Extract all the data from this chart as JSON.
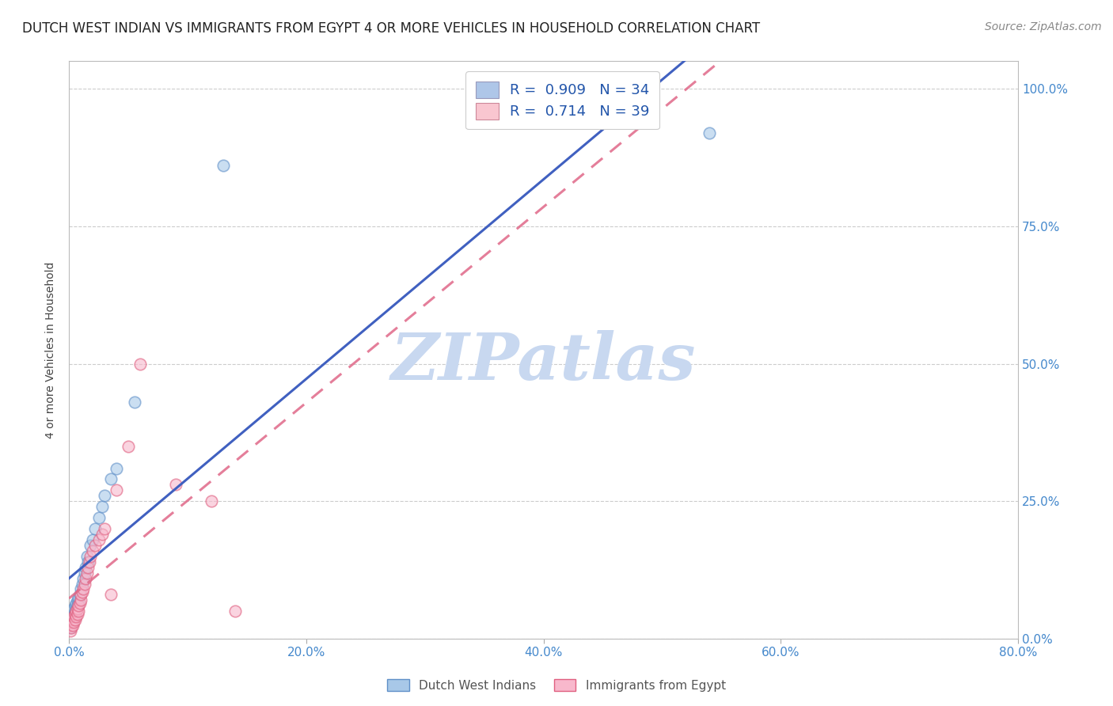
{
  "title": "DUTCH WEST INDIAN VS IMMIGRANTS FROM EGYPT 4 OR MORE VEHICLES IN HOUSEHOLD CORRELATION CHART",
  "source": "Source: ZipAtlas.com",
  "ylabel_label": "4 or more Vehicles in Household",
  "legend_r1": "R =  0.909   N = 34",
  "legend_r2": "R =  0.714   N = 39",
  "legend_color1": "#aec6e8",
  "legend_color2": "#f9c6d0",
  "series1_face": "#a8c8e8",
  "series1_edge": "#6090c8",
  "series2_face": "#f8b8cc",
  "series2_edge": "#e06080",
  "line1_color": "#4060c0",
  "line2_color": "#e06888",
  "line2_style": "dashed",
  "watermark_text": "ZIPatlas",
  "watermark_color": "#c8d8f0",
  "background_color": "#ffffff",
  "grid_color": "#cccccc",
  "axis_label_color": "#4488cc",
  "title_color": "#222222",
  "source_color": "#888888",
  "blue_scatter_x": [
    0.001,
    0.002,
    0.002,
    0.003,
    0.003,
    0.004,
    0.004,
    0.005,
    0.005,
    0.006,
    0.006,
    0.007,
    0.007,
    0.008,
    0.008,
    0.009,
    0.01,
    0.011,
    0.012,
    0.013,
    0.014,
    0.015,
    0.016,
    0.018,
    0.02,
    0.022,
    0.025,
    0.028,
    0.03,
    0.035,
    0.04,
    0.055,
    0.13,
    0.54
  ],
  "blue_scatter_y": [
    0.02,
    0.025,
    0.035,
    0.03,
    0.04,
    0.045,
    0.055,
    0.05,
    0.06,
    0.055,
    0.065,
    0.06,
    0.07,
    0.065,
    0.075,
    0.08,
    0.09,
    0.1,
    0.11,
    0.12,
    0.13,
    0.15,
    0.14,
    0.17,
    0.18,
    0.2,
    0.22,
    0.24,
    0.26,
    0.29,
    0.31,
    0.43,
    0.86,
    0.92
  ],
  "pink_scatter_x": [
    0.001,
    0.001,
    0.002,
    0.002,
    0.003,
    0.003,
    0.004,
    0.004,
    0.005,
    0.005,
    0.006,
    0.006,
    0.007,
    0.007,
    0.008,
    0.008,
    0.009,
    0.01,
    0.01,
    0.011,
    0.012,
    0.013,
    0.014,
    0.015,
    0.016,
    0.017,
    0.018,
    0.02,
    0.022,
    0.025,
    0.028,
    0.03,
    0.035,
    0.04,
    0.05,
    0.06,
    0.09,
    0.12,
    0.14
  ],
  "pink_scatter_y": [
    0.015,
    0.025,
    0.02,
    0.03,
    0.025,
    0.035,
    0.03,
    0.04,
    0.035,
    0.045,
    0.04,
    0.05,
    0.045,
    0.055,
    0.05,
    0.06,
    0.065,
    0.07,
    0.08,
    0.085,
    0.09,
    0.1,
    0.11,
    0.12,
    0.13,
    0.14,
    0.15,
    0.16,
    0.17,
    0.18,
    0.19,
    0.2,
    0.08,
    0.27,
    0.35,
    0.5,
    0.28,
    0.25,
    0.05
  ],
  "xlim": [
    0.0,
    0.8
  ],
  "ylim": [
    0.0,
    1.05
  ],
  "xticks": [
    0.0,
    0.2,
    0.4,
    0.6,
    0.8
  ],
  "yticks": [
    0.0,
    0.25,
    0.5,
    0.75,
    1.0
  ],
  "xticklabels": [
    "0.0%",
    "20.0%",
    "40.0%",
    "60.0%",
    "80.0%"
  ],
  "yticklabels": [
    "0.0%",
    "25.0%",
    "50.0%",
    "75.0%",
    "100.0%"
  ],
  "bottom_legend_labels": [
    "Dutch West Indians",
    "Immigrants from Egypt"
  ],
  "title_fontsize": 12,
  "tick_fontsize": 11,
  "ylabel_fontsize": 10,
  "source_fontsize": 10
}
